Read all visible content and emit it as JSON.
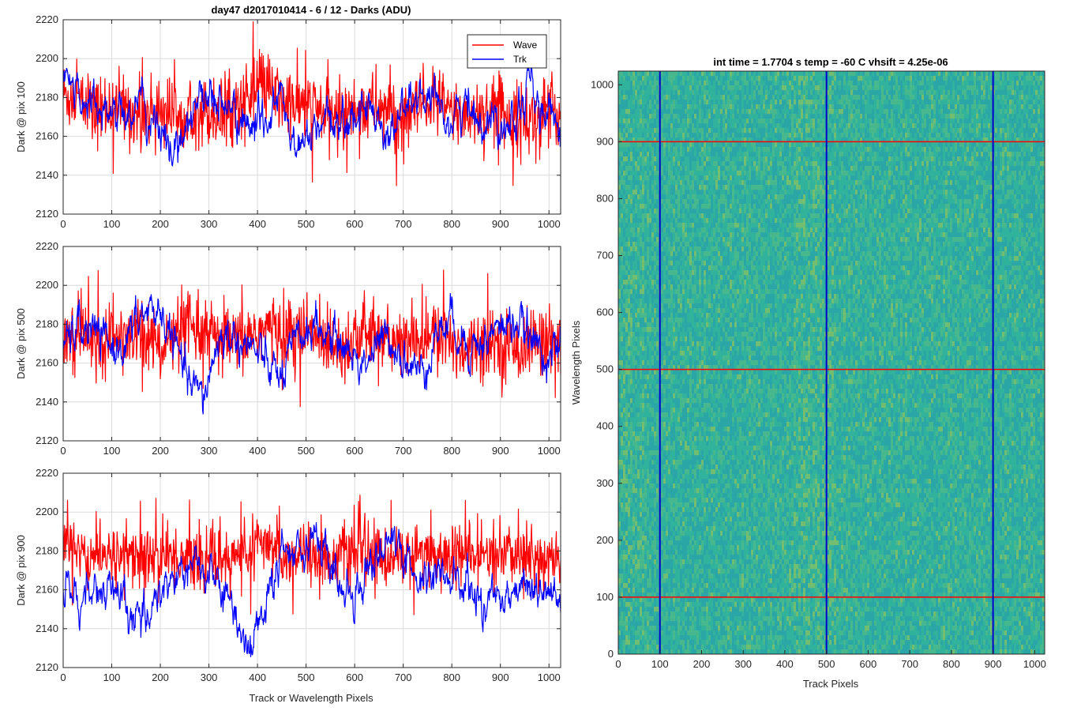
{
  "figure": {
    "title": "day47 d2017010414 - 6 / 12 - Darks (ADU)"
  },
  "chart_data": [
    {
      "type": "line",
      "ylabel": "Dark @ pix 100",
      "xlabel": "",
      "xlim": [
        0,
        1024
      ],
      "ylim": [
        2120,
        2220
      ],
      "xticks": [
        0,
        100,
        200,
        300,
        400,
        500,
        600,
        700,
        800,
        900,
        1000
      ],
      "yticks": [
        2120,
        2140,
        2160,
        2180,
        2200,
        2220
      ],
      "grid": true,
      "legend": "top-right",
      "series": [
        {
          "name": "Wave",
          "color": "#ff0000",
          "mean": 2174,
          "noise": 9,
          "values_sampled_every_32px": [
            2182,
            2178,
            2172,
            2176,
            2174,
            2170,
            2175,
            2172,
            2176,
            2173,
            2171,
            2175,
            2180,
            2186,
            2178,
            2176,
            2174,
            2172,
            2170,
            2174,
            2176,
            2173,
            2168,
            2175,
            2178,
            2172,
            2171,
            2173,
            2175,
            2170,
            2168,
            2172
          ]
        },
        {
          "name": "Trk",
          "color": "#0000ff",
          "mean": 2172,
          "noise": 4,
          "values_sampled_every_32px": [
            2190,
            2182,
            2178,
            2172,
            2174,
            2175,
            2166,
            2150,
            2168,
            2184,
            2176,
            2172,
            2162,
            2170,
            2180,
            2150,
            2162,
            2164,
            2168,
            2172,
            2174,
            2160,
            2176,
            2180,
            2172,
            2170,
            2176,
            2168,
            2168,
            2172,
            2188,
            2168
          ]
        }
      ]
    },
    {
      "type": "line",
      "ylabel": "Dark @ pix 500",
      "xlabel": "",
      "xlim": [
        0,
        1024
      ],
      "ylim": [
        2120,
        2220
      ],
      "xticks": [
        0,
        100,
        200,
        300,
        400,
        500,
        600,
        700,
        800,
        900,
        1000
      ],
      "yticks": [
        2120,
        2140,
        2160,
        2180,
        2200,
        2220
      ],
      "grid": true,
      "series": [
        {
          "name": "Wave",
          "color": "#ff0000",
          "mean": 2173,
          "noise": 9,
          "values_sampled_every_32px": [
            2175,
            2172,
            2170,
            2174,
            2172,
            2176,
            2170,
            2172,
            2178,
            2174,
            2172,
            2170,
            2174,
            2178,
            2176,
            2176,
            2174,
            2172,
            2170,
            2173,
            2175,
            2171,
            2169,
            2172,
            2174,
            2170,
            2168,
            2172,
            2170,
            2168,
            2170,
            2172
          ]
        },
        {
          "name": "Trk",
          "color": "#0000ff",
          "mean": 2170,
          "noise": 4,
          "values_sampled_every_32px": [
            2170,
            2178,
            2176,
            2168,
            2170,
            2184,
            2188,
            2174,
            2150,
            2142,
            2172,
            2174,
            2168,
            2160,
            2152,
            2170,
            2180,
            2174,
            2170,
            2160,
            2166,
            2174,
            2162,
            2154,
            2176,
            2182,
            2170,
            2170,
            2178,
            2182,
            2172,
            2166
          ]
        }
      ]
    },
    {
      "type": "line",
      "ylabel": "Dark @ pix 900",
      "xlabel": "Track or Wavelength Pixels",
      "xlim": [
        0,
        1024
      ],
      "ylim": [
        2120,
        2220
      ],
      "xticks": [
        0,
        100,
        200,
        300,
        400,
        500,
        600,
        700,
        800,
        900,
        1000
      ],
      "yticks": [
        2120,
        2140,
        2160,
        2180,
        2200,
        2220
      ],
      "grid": true,
      "series": [
        {
          "name": "Wave",
          "color": "#ff0000",
          "mean": 2178,
          "noise": 8,
          "values_sampled_every_32px": [
            2184,
            2180,
            2178,
            2176,
            2180,
            2178,
            2176,
            2178,
            2176,
            2174,
            2176,
            2178,
            2180,
            2182,
            2180,
            2178,
            2178,
            2176,
            2178,
            2180,
            2178,
            2176,
            2178,
            2180,
            2178,
            2176,
            2178,
            2176,
            2178,
            2178,
            2176,
            2176
          ]
        },
        {
          "name": "Trk",
          "color": "#0000ff",
          "mean": 2165,
          "noise": 4,
          "values_sampled_every_32px": [
            2162,
            2156,
            2158,
            2160,
            2152,
            2140,
            2160,
            2164,
            2172,
            2170,
            2164,
            2146,
            2132,
            2150,
            2178,
            2182,
            2190,
            2176,
            2158,
            2162,
            2178,
            2186,
            2174,
            2164,
            2170,
            2162,
            2164,
            2150,
            2158,
            2162,
            2164,
            2156
          ]
        }
      ]
    },
    {
      "type": "heatmap",
      "title": "int time = 1.7704 s    temp = -60 C    vhsift = 4.25e-06",
      "xlabel": "Track Pixels",
      "ylabel": "Wavelength Pixels",
      "xlim": [
        0,
        1024
      ],
      "ylim": [
        0,
        1024
      ],
      "xticks": [
        0,
        100,
        200,
        300,
        400,
        500,
        600,
        700,
        800,
        900,
        1000
      ],
      "yticks": [
        0,
        100,
        200,
        300,
        400,
        500,
        600,
        700,
        800,
        900,
        1000
      ],
      "colormap": "parula",
      "base_colors": [
        "#2aa5a8",
        "#30b39b",
        "#4bba8a",
        "#7cc06a"
      ],
      "vertical_lines": {
        "positions": [
          100,
          500,
          900
        ],
        "color": "#0000cc"
      },
      "horizontal_lines": {
        "positions": [
          100,
          500,
          900
        ],
        "color": "#ff0000"
      }
    }
  ]
}
